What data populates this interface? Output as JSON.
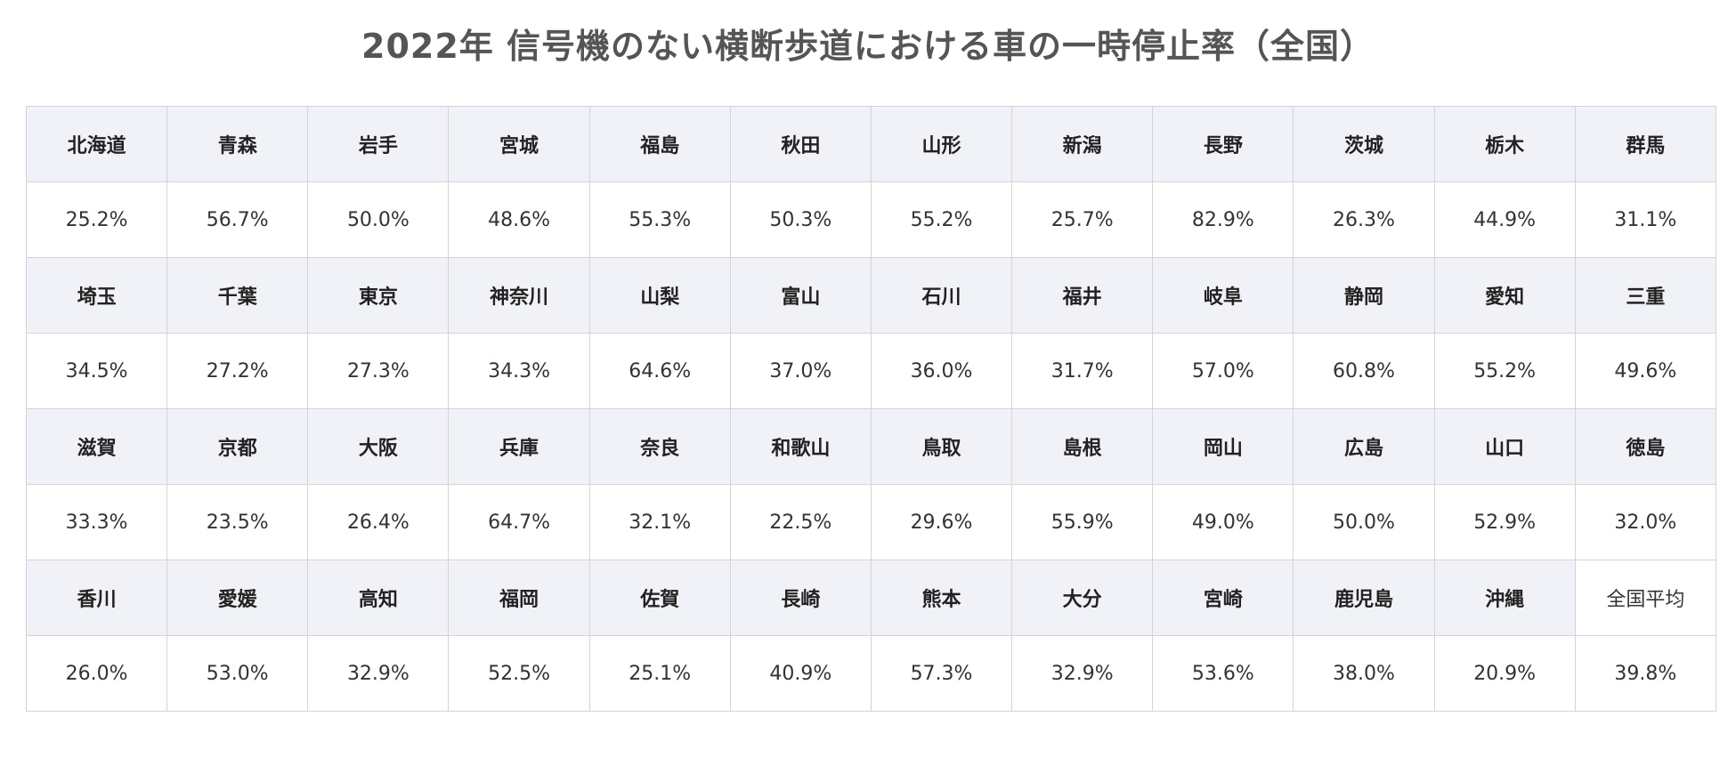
{
  "title": "2022年 信号機のない横断歩道における車の一時停止率（全国）",
  "rows": [
    {
      "names": [
        "北海道",
        "青森",
        "岩手",
        "宮城",
        "福島",
        "秋田",
        "山形",
        "新潟",
        "長野",
        "茨城",
        "栃木",
        "群馬"
      ],
      "values": [
        "25.2%",
        "56.7%",
        "50.0%",
        "48.6%",
        "55.3%",
        "50.3%",
        "55.2%",
        "25.7%",
        "82.9%",
        "26.3%",
        "44.9%",
        "31.1%"
      ]
    },
    {
      "names": [
        "埼玉",
        "千葉",
        "東京",
        "神奈川",
        "山梨",
        "富山",
        "石川",
        "福井",
        "岐阜",
        "静岡",
        "愛知",
        "三重"
      ],
      "values": [
        "34.5%",
        "27.2%",
        "27.3%",
        "34.3%",
        "64.6%",
        "37.0%",
        "36.0%",
        "31.7%",
        "57.0%",
        "60.8%",
        "55.2%",
        "49.6%"
      ]
    },
    {
      "names": [
        "滋賀",
        "京都",
        "大阪",
        "兵庫",
        "奈良",
        "和歌山",
        "鳥取",
        "島根",
        "岡山",
        "広島",
        "山口",
        "徳島"
      ],
      "values": [
        "33.3%",
        "23.5%",
        "26.4%",
        "64.7%",
        "32.1%",
        "22.5%",
        "29.6%",
        "55.9%",
        "49.0%",
        "50.0%",
        "52.9%",
        "32.0%"
      ]
    },
    {
      "names": [
        "香川",
        "愛媛",
        "高知",
        "福岡",
        "佐賀",
        "長崎",
        "熊本",
        "大分",
        "宮崎",
        "鹿児島",
        "沖縄",
        "全国平均"
      ],
      "values": [
        "26.0%",
        "53.0%",
        "32.9%",
        "52.5%",
        "25.1%",
        "40.9%",
        "57.3%",
        "32.9%",
        "53.6%",
        "38.0%",
        "20.9%",
        "39.8%"
      ]
    }
  ]
}
